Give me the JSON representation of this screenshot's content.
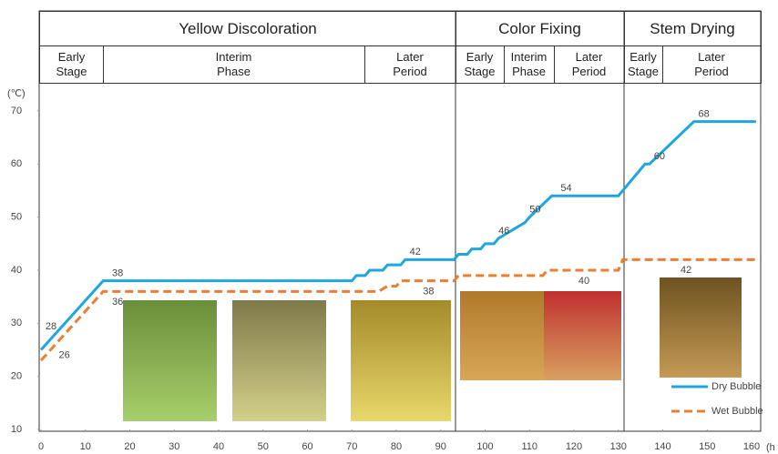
{
  "chart_data": {
    "type": "line",
    "y_label": "(℃)",
    "x_label": "(h",
    "xlim": [
      0,
      162
    ],
    "ylim": [
      10,
      75
    ],
    "xticks": [
      0,
      10,
      20,
      30,
      40,
      50,
      60,
      70,
      80,
      90,
      100,
      110,
      120,
      130,
      140,
      150,
      160
    ],
    "yticks": [
      10,
      20,
      30,
      40,
      50,
      60,
      70
    ],
    "legend": "lower right",
    "phases": [
      {
        "name": "Yellow Discoloration",
        "stages": [
          [
            "Early",
            "Stage"
          ],
          [
            "Interim",
            "Phase"
          ],
          [
            "Later",
            "Period"
          ]
        ]
      },
      {
        "name": "Color Fixing",
        "stages": [
          [
            "Early",
            "Stage"
          ],
          [
            "Interim",
            "Phase"
          ],
          [
            "Later",
            "Period"
          ]
        ]
      },
      {
        "name": "Stem Drying",
        "stages": [
          [
            "Early",
            "Stage"
          ],
          [
            "Later",
            "Period"
          ]
        ]
      }
    ],
    "series": [
      {
        "name": "Dry Bubble",
        "color": "#1fa6e0",
        "dash": false,
        "x": [
          0,
          14,
          70,
          71,
          73,
          74,
          77,
          78,
          81,
          82,
          93,
          94,
          96,
          97,
          99,
          100,
          102,
          103,
          105,
          107,
          109,
          110,
          115,
          130,
          136,
          137,
          147,
          161
        ],
        "values": [
          25,
          38,
          38,
          39,
          39,
          40,
          40,
          41,
          41,
          42,
          42,
          43,
          43,
          44,
          44,
          45,
          45,
          46,
          47,
          48,
          49,
          50,
          54,
          54,
          60,
          60,
          68,
          68
        ],
        "labels": [
          {
            "x": 1,
            "value": 28
          },
          {
            "x": 16,
            "value": 38
          },
          {
            "x": 83,
            "value": 42
          },
          {
            "x": 103,
            "value": 46
          },
          {
            "x": 110,
            "value": 50
          },
          {
            "x": 117,
            "value": 54
          },
          {
            "x": 138,
            "value": 60
          },
          {
            "x": 148,
            "value": 68
          }
        ]
      },
      {
        "name": "Wet Bubble",
        "color": "#ed7d31",
        "dash": true,
        "x": [
          0,
          14,
          76,
          78,
          80,
          81,
          93,
          94,
          113,
          114,
          130,
          131,
          161
        ],
        "values": [
          23,
          36,
          36,
          37,
          37,
          38,
          38,
          39,
          39,
          40,
          40,
          42,
          42
        ],
        "labels": [
          {
            "x": 4,
            "value": 26
          },
          {
            "x": 16,
            "value": 36
          },
          {
            "x": 86,
            "value": 38
          },
          {
            "x": 121,
            "value": 40
          },
          {
            "x": 144,
            "value": 42
          }
        ]
      }
    ]
  }
}
